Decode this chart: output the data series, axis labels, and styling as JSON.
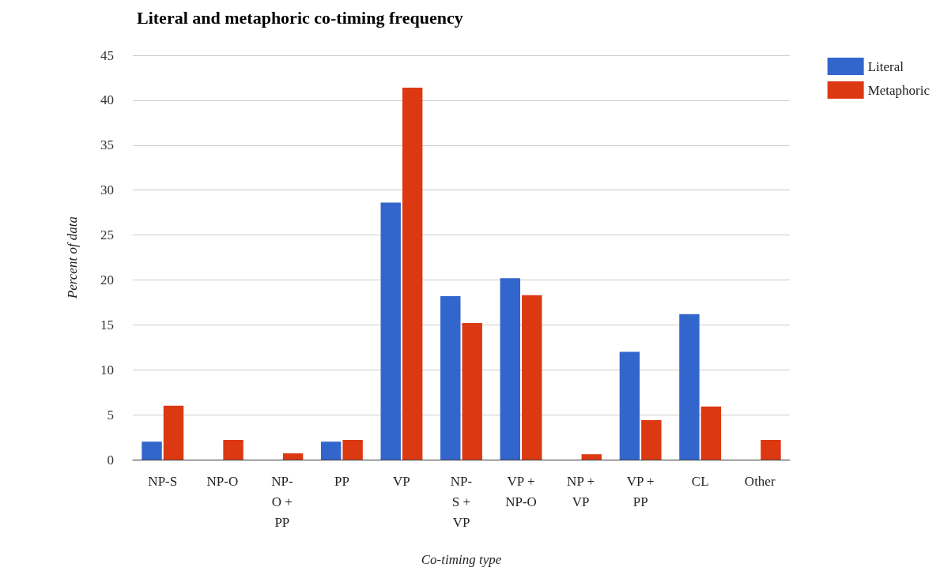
{
  "chart_data": {
    "type": "bar",
    "title": "Literal and metaphoric co-timing frequency",
    "xlabel": "Co-timing type",
    "ylabel": "Percent of data",
    "categories": [
      "NP-S",
      "NP-O",
      "NP-O + PP",
      "PP",
      "VP",
      "NP-S + VP",
      "VP + NP-O",
      "NP + VP",
      "VP + PP",
      "CL",
      "Other"
    ],
    "series": [
      {
        "name": "Literal",
        "color": "#3366cc",
        "values": [
          2.0,
          0,
          0,
          2.0,
          28.6,
          18.2,
          20.2,
          0,
          12.0,
          16.2,
          0
        ]
      },
      {
        "name": "Metaphoric",
        "color": "#dc3912",
        "values": [
          6.0,
          2.2,
          0.7,
          2.2,
          41.4,
          15.2,
          18.3,
          0.6,
          4.4,
          5.9,
          2.2
        ]
      }
    ],
    "ylim": [
      0,
      45
    ],
    "yticks": [
      0,
      5,
      10,
      15,
      20,
      25,
      30,
      35,
      40,
      45
    ],
    "grid": "y",
    "legend": "top right"
  }
}
